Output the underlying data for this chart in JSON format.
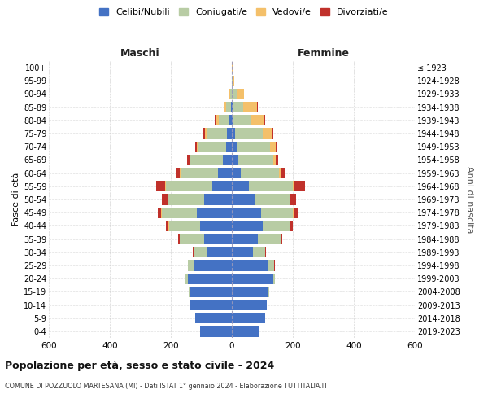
{
  "age_groups": [
    "0-4",
    "5-9",
    "10-14",
    "15-19",
    "20-24",
    "25-29",
    "30-34",
    "35-39",
    "40-44",
    "45-49",
    "50-54",
    "55-59",
    "60-64",
    "65-69",
    "70-74",
    "75-79",
    "80-84",
    "85-89",
    "90-94",
    "95-99",
    "100+"
  ],
  "birth_years": [
    "2019-2023",
    "2014-2018",
    "2009-2013",
    "2004-2008",
    "1999-2003",
    "1994-1998",
    "1989-1993",
    "1984-1988",
    "1979-1983",
    "1974-1978",
    "1969-1973",
    "1964-1968",
    "1959-1963",
    "1954-1958",
    "1949-1953",
    "1944-1948",
    "1939-1943",
    "1934-1938",
    "1929-1933",
    "1924-1928",
    "≤ 1923"
  ],
  "male_celibi": [
    105,
    120,
    135,
    140,
    145,
    125,
    80,
    90,
    105,
    115,
    90,
    65,
    45,
    30,
    20,
    15,
    8,
    3,
    0,
    0,
    0
  ],
  "male_coniugati": [
    0,
    0,
    0,
    2,
    8,
    20,
    45,
    80,
    100,
    115,
    120,
    150,
    120,
    105,
    90,
    65,
    35,
    15,
    5,
    0,
    0
  ],
  "male_vedovi": [
    0,
    0,
    0,
    0,
    0,
    0,
    0,
    1,
    2,
    2,
    2,
    3,
    5,
    5,
    5,
    8,
    10,
    5,
    2,
    0,
    0
  ],
  "male_divorziati": [
    0,
    0,
    0,
    0,
    0,
    0,
    3,
    5,
    8,
    12,
    18,
    30,
    15,
    8,
    5,
    5,
    2,
    0,
    0,
    0,
    0
  ],
  "female_celibi": [
    90,
    110,
    115,
    120,
    135,
    120,
    70,
    85,
    100,
    95,
    75,
    55,
    30,
    20,
    15,
    10,
    5,
    2,
    0,
    0,
    0
  ],
  "female_coniugati": [
    0,
    0,
    0,
    2,
    5,
    18,
    40,
    75,
    90,
    105,
    115,
    145,
    125,
    115,
    110,
    90,
    60,
    35,
    15,
    2,
    0
  ],
  "female_vedovi": [
    0,
    0,
    0,
    0,
    0,
    0,
    0,
    1,
    1,
    2,
    3,
    5,
    8,
    10,
    18,
    30,
    40,
    45,
    25,
    5,
    2
  ],
  "female_divorziati": [
    0,
    0,
    0,
    0,
    0,
    2,
    3,
    5,
    8,
    15,
    18,
    35,
    12,
    8,
    5,
    5,
    5,
    3,
    0,
    0,
    0
  ],
  "color_celibi": "#4472c4",
  "color_coniugati": "#b8cca4",
  "color_vedovi": "#f4c06a",
  "color_divorziati": "#c0312b",
  "title_main": "Popolazione per età, sesso e stato civile - 2024",
  "title_sub": "COMUNE DI POZZUOLO MARTESANA (MI) - Dati ISTAT 1° gennaio 2024 - Elaborazione TUTTITALIA.IT",
  "xlabel_left": "Maschi",
  "xlabel_right": "Femmine",
  "ylabel_left": "Fasce di età",
  "ylabel_right": "Anni di nascita",
  "xlim": 600,
  "bg_color": "#ffffff",
  "grid_color": "#cccccc",
  "legend_labels": [
    "Celibi/Nubili",
    "Coniugati/e",
    "Vedovi/e",
    "Divorziati/e"
  ]
}
